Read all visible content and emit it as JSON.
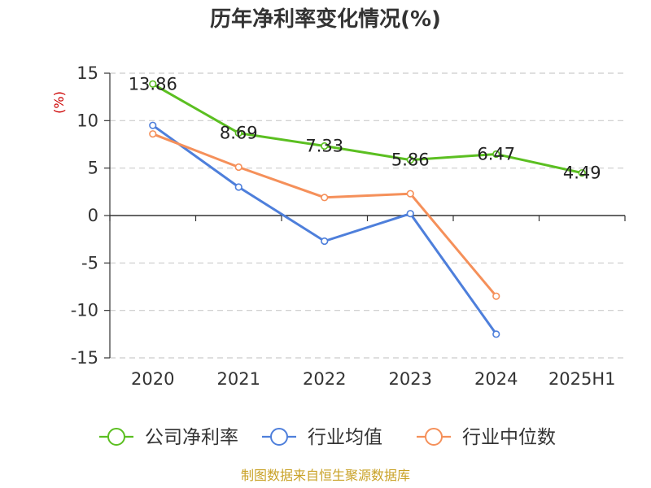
{
  "colors": {
    "company": "#5bbf21",
    "industry_avg": "#4e7fdb",
    "industry_median": "#f5905a",
    "grid": "#cccccc",
    "axis": "#333333",
    "ylabel": "#cc0000",
    "source": "#c9a227"
  },
  "source_note": "制图数据来自恒生聚源数据库",
  "chart_data": {
    "type": "line",
    "title": "历年净利率变化情况(%)",
    "xlabel": "",
    "ylabel": "(%)",
    "categories": [
      "2020",
      "2021",
      "2022",
      "2023",
      "2024",
      "2025H1"
    ],
    "ylim": [
      -15,
      15
    ],
    "yticks": [
      "15",
      "10",
      "5",
      "0",
      "-5",
      "-10",
      "-15"
    ],
    "grid": true,
    "legend_position": "bottom",
    "series": [
      {
        "name": "公司净利率",
        "color_key": "company",
        "values": [
          13.86,
          8.69,
          7.33,
          5.86,
          6.47,
          4.49
        ],
        "labels": [
          "13.86",
          "8.69",
          "7.33",
          "5.86",
          "6.47",
          "4.49"
        ]
      },
      {
        "name": "行业均值",
        "color_key": "industry_avg",
        "values": [
          9.5,
          3.0,
          -2.7,
          0.2,
          -12.5,
          null
        ]
      },
      {
        "name": "行业中位数",
        "color_key": "industry_median",
        "values": [
          8.6,
          5.1,
          1.9,
          2.3,
          -8.5,
          null
        ]
      }
    ]
  }
}
